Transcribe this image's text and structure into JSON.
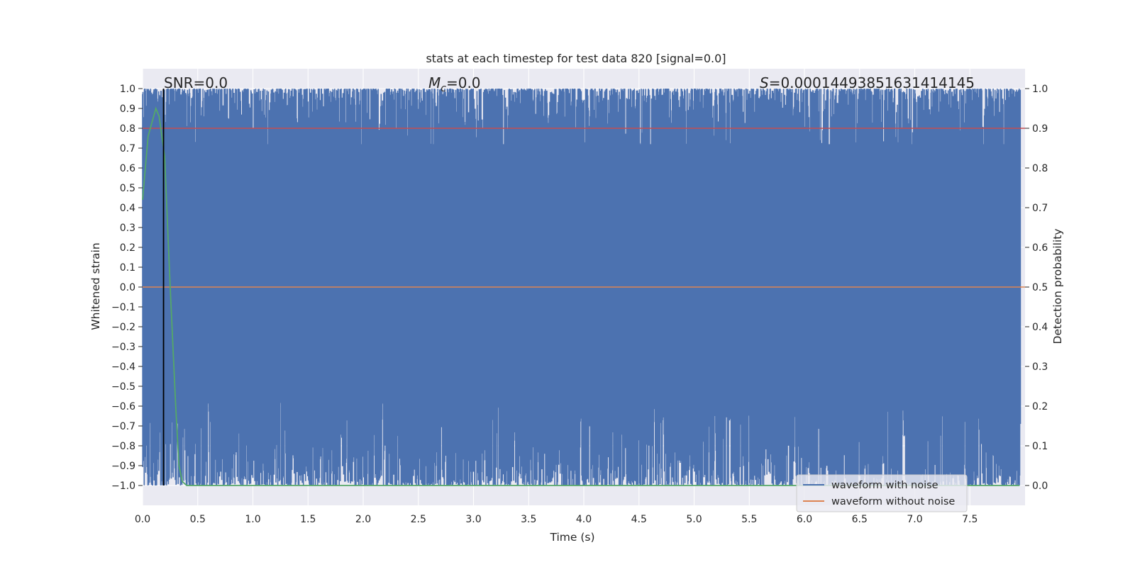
{
  "chart_data": {
    "type": "line",
    "title": "stats at each timestep for test data 820 [signal=0.0]",
    "xlabel": "Time (s)",
    "ylabel_left": "Whitened strain",
    "ylabel_right": "Detection probability",
    "xlim": [
      0.0,
      8.0
    ],
    "ylim_left": [
      -1.1,
      1.1
    ],
    "ylim_right": [
      -0.05,
      1.05
    ],
    "x_ticks": [
      0.0,
      0.5,
      1.0,
      1.5,
      2.0,
      2.5,
      3.0,
      3.5,
      4.0,
      4.5,
      5.0,
      5.5,
      6.0,
      6.5,
      7.0,
      7.5
    ],
    "x_tick_labels": [
      "0.0",
      "0.5",
      "1.0",
      "1.5",
      "2.0",
      "2.5",
      "3.0",
      "3.5",
      "4.0",
      "4.5",
      "5.0",
      "5.5",
      "6.0",
      "6.5",
      "7.0",
      "7.5"
    ],
    "y_left_ticks": [
      1.0,
      0.9,
      0.8,
      0.7,
      0.6,
      0.5,
      0.4,
      0.3,
      0.2,
      0.1,
      0.0,
      -0.1,
      -0.2,
      -0.3,
      -0.4,
      -0.5,
      -0.6,
      -0.7,
      -0.8,
      -0.9,
      -1.0
    ],
    "y_left_tick_labels": [
      "1.0",
      "0.9",
      "0.8",
      "0.7",
      "0.6",
      "0.5",
      "0.4",
      "0.3",
      "0.2",
      "0.1",
      "0.0",
      "−0.1",
      "−0.2",
      "−0.3",
      "−0.4",
      "−0.5",
      "−0.6",
      "−0.7",
      "−0.8",
      "−0.9",
      "−1.0"
    ],
    "y_right_ticks": [
      1.0,
      0.9,
      0.8,
      0.7,
      0.6,
      0.5,
      0.4,
      0.3,
      0.2,
      0.1,
      0.0
    ],
    "y_right_tick_labels": [
      "1.0",
      "0.9",
      "0.8",
      "0.7",
      "0.6",
      "0.5",
      "0.4",
      "0.3",
      "0.2",
      "0.1",
      "0.0"
    ],
    "grid": true,
    "annotations": {
      "snr": "SNR=0.0",
      "mc_symbol": "M",
      "mc_sub": "c",
      "mc_value": "=0.0",
      "s_symbol": "S",
      "s_value": "=0.00014493851631414145"
    },
    "series": [
      {
        "name": "waveform with noise",
        "axis": "left",
        "color": "#4c72b0",
        "description_range": [
          -1.0,
          1.0
        ],
        "x_range": [
          0.0,
          8.0
        ]
      },
      {
        "name": "waveform without noise",
        "axis": "left",
        "color": "#dd8452",
        "x": [
          0.0,
          8.0
        ],
        "y": [
          0.0,
          0.0
        ]
      },
      {
        "axis": "right",
        "color": "#55a868",
        "x": [
          0.0,
          0.05,
          0.1,
          0.12,
          0.15,
          0.2,
          0.25,
          0.3,
          0.33,
          0.36,
          0.4,
          1.0,
          2.0,
          3.0,
          4.0,
          5.0,
          6.0,
          7.0,
          7.95
        ],
        "y": [
          0.72,
          0.88,
          0.93,
          0.95,
          0.93,
          0.83,
          0.5,
          0.2,
          0.05,
          0.01,
          0.0,
          0.0,
          0.0,
          0.0,
          0.0,
          0.0,
          0.0,
          0.0,
          0.0
        ]
      },
      {
        "axis": "right",
        "color": "#c44e52",
        "x": [
          0.0,
          8.0
        ],
        "y": [
          0.9,
          0.9
        ]
      }
    ],
    "vertical_line": {
      "x": 0.19,
      "color": "#000000"
    },
    "legend": {
      "placement": "lower-right",
      "entries": [
        "waveform with noise",
        "waveform without noise"
      ]
    }
  }
}
